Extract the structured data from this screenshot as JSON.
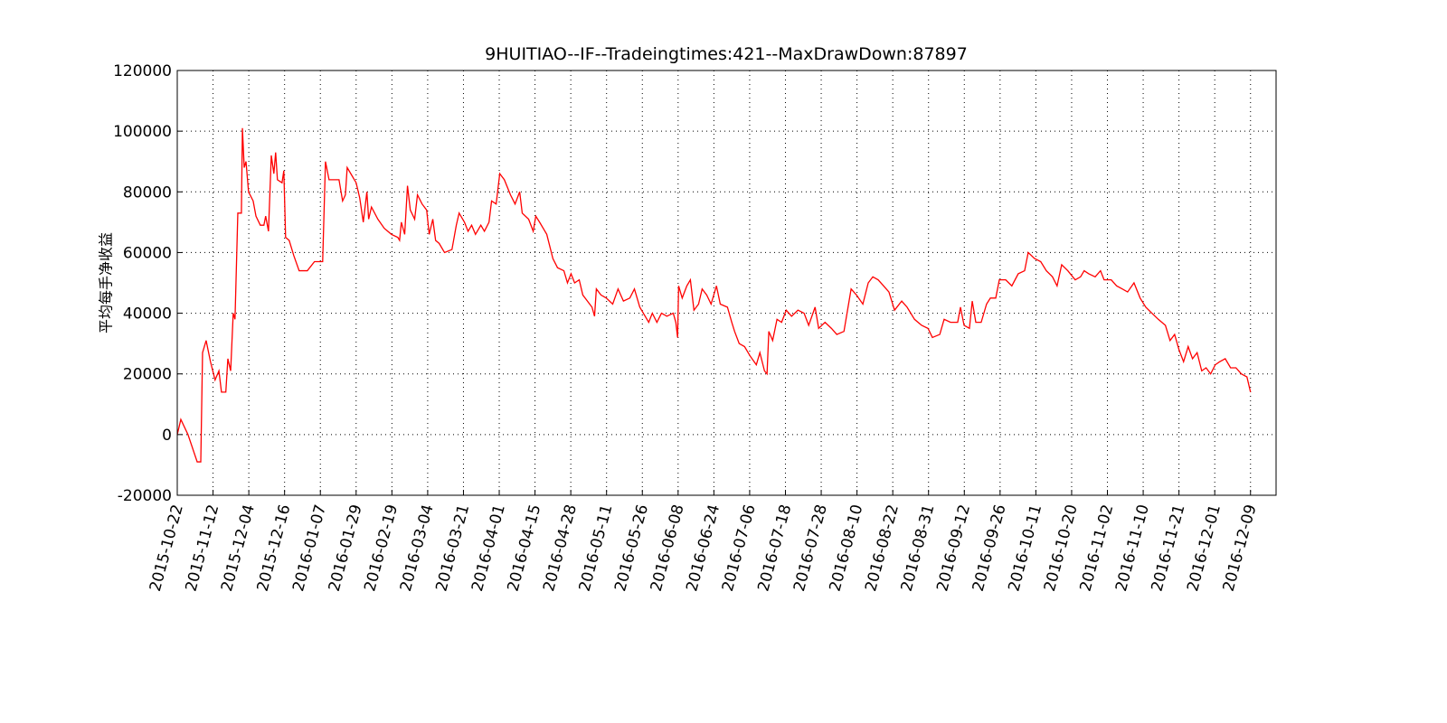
{
  "chart_data": {
    "type": "line",
    "title": "9HUITIAO--IF--Tradeingtimes:421--MaxDrawDown:87897",
    "y_label": "平均每手净收益",
    "color": "#ff0000",
    "grid": true,
    "xlim": [
      0,
      430
    ],
    "ylim": [
      -20000,
      120000
    ],
    "yticks": [
      -20000,
      0,
      20000,
      40000,
      60000,
      80000,
      100000,
      120000
    ],
    "xticks": [
      {
        "value": 0,
        "label": "2015-10-22"
      },
      {
        "value": 14,
        "label": "2015-11-12"
      },
      {
        "value": 28,
        "label": "2015-12-04"
      },
      {
        "value": 42,
        "label": "2015-12-16"
      },
      {
        "value": 56,
        "label": "2016-01-07"
      },
      {
        "value": 70,
        "label": "2016-01-29"
      },
      {
        "value": 84,
        "label": "2016-02-19"
      },
      {
        "value": 98,
        "label": "2016-03-04"
      },
      {
        "value": 112,
        "label": "2016-03-21"
      },
      {
        "value": 126,
        "label": "2016-04-01"
      },
      {
        "value": 140,
        "label": "2016-04-15"
      },
      {
        "value": 154,
        "label": "2016-04-28"
      },
      {
        "value": 168,
        "label": "2016-05-11"
      },
      {
        "value": 182,
        "label": "2016-05-26"
      },
      {
        "value": 196,
        "label": "2016-06-08"
      },
      {
        "value": 210,
        "label": "2016-06-24"
      },
      {
        "value": 224,
        "label": "2016-07-06"
      },
      {
        "value": 238,
        "label": "2016-07-18"
      },
      {
        "value": 252,
        "label": "2016-07-28"
      },
      {
        "value": 266,
        "label": "2016-08-10"
      },
      {
        "value": 280,
        "label": "2016-08-22"
      },
      {
        "value": 294,
        "label": "2016-08-31"
      },
      {
        "value": 308,
        "label": "2016-09-12"
      },
      {
        "value": 322,
        "label": "2016-09-26"
      },
      {
        "value": 336,
        "label": "2016-10-11"
      },
      {
        "value": 350,
        "label": "2016-10-20"
      },
      {
        "value": 364,
        "label": "2016-11-02"
      },
      {
        "value": 378,
        "label": "2016-11-10"
      },
      {
        "value": 392,
        "label": "2016-11-21"
      },
      {
        "value": 406,
        "label": "2016-12-01"
      },
      {
        "value": 420,
        "label": "2016-12-09"
      }
    ],
    "x": [
      0,
      1.4,
      4.2,
      7.8,
      9.2,
      9.9,
      11.3,
      13,
      14.8,
      16.3,
      17.3,
      19,
      19.8,
      20.9,
      21.9,
      22.6,
      23.7,
      25.1,
      25.5,
      26.2,
      26.9,
      27.9,
      29.7,
      30.8,
      32.5,
      33.9,
      34.6,
      35.7,
      36.8,
      37.8,
      38.5,
      39.2,
      41,
      41.7,
      42.4,
      43.8,
      45.6,
      47.7,
      50.9,
      53.7,
      56.9,
      58,
      59.4,
      63.3,
      64.7,
      65.8,
      66.5,
      67.9,
      70,
      71.4,
      72.8,
      74.2,
      74.9,
      76,
      78.5,
      81,
      83.8,
      86.3,
      87,
      87.7,
      89,
      90.1,
      91.2,
      92.9,
      94,
      95.8,
      97.6,
      98.6,
      100,
      101.1,
      102.5,
      104.6,
      107.5,
      109.2,
      110.3,
      112.4,
      113.8,
      115.2,
      116.7,
      118.8,
      120.2,
      122,
      123,
      124.8,
      126.2,
      128,
      130.4,
      132.2,
      134,
      135,
      137.5,
      139.3,
      140.3,
      141.8,
      144.6,
      147,
      148.8,
      151.3,
      152.7,
      154.1,
      155.5,
      157.3,
      158.7,
      160.5,
      162.3,
      163.3,
      164,
      165.8,
      167.9,
      170.4,
      172.5,
      174.6,
      177.1,
      178.9,
      181,
      183.1,
      184.5,
      185.9,
      187.7,
      189.5,
      191.6,
      194.1,
      195.1,
      195.8,
      196.2,
      197.6,
      199.4,
      200.8,
      202.2,
      204,
      205.4,
      207.2,
      208.9,
      211,
      212.5,
      215.3,
      217,
      218.1,
      219.9,
      222,
      224.1,
      226.6,
      228,
      229.8,
      230.8,
      231.5,
      233,
      234.7,
      236.5,
      238.3,
      240.4,
      242.9,
      245.3,
      247.1,
      249.6,
      251,
      253.5,
      256,
      258.1,
      260.9,
      262.3,
      263.7,
      265.8,
      268.3,
      270.4,
      272.2,
      274.3,
      276.4,
      278.5,
      280.7,
      283.5,
      285.6,
      288.5,
      291.3,
      293.8,
      295.5,
      298.4,
      300.1,
      302.6,
      305.4,
      306.5,
      307.9,
      310,
      311.1,
      312.5,
      314.6,
      316.7,
      318.2,
      320.3,
      321.7,
      324.2,
      326.6,
      329.1,
      331.6,
      333,
      335.5,
      337.9,
      340.1,
      342.5,
      344.3,
      346.1,
      348.5,
      351.4,
      353.5,
      354.9,
      356.7,
      359.2,
      361.3,
      362.7,
      365.5,
      367.6,
      369.8,
      371.9,
      374.4,
      376.8,
      379,
      381.4,
      383.9,
      386.7,
      388.5,
      390.3,
      392,
      393.8,
      395.6,
      397.3,
      399.1,
      400.9,
      402.6,
      404.4,
      406.2,
      407.9,
      410.1,
      412.2,
      414.3,
      416.4,
      418.6,
      420
    ],
    "values": [
      0,
      5000,
      0,
      -9000,
      -9000,
      27000,
      31000,
      24000,
      18000,
      21000,
      14000,
      14000,
      25000,
      21000,
      40000,
      38000,
      73000,
      73000,
      101000,
      88000,
      90000,
      80000,
      77000,
      72000,
      69000,
      69000,
      72000,
      67000,
      92000,
      86000,
      93000,
      84000,
      83000,
      87000,
      65000,
      64000,
      59000,
      54000,
      54000,
      57000,
      57000,
      90000,
      84000,
      84000,
      77000,
      79000,
      88000,
      86000,
      83000,
      78000,
      70000,
      80000,
      71000,
      75000,
      71000,
      68000,
      66000,
      65000,
      64000,
      70000,
      66000,
      82000,
      74000,
      71000,
      79000,
      76000,
      74000,
      66000,
      71000,
      64000,
      63000,
      60000,
      61000,
      69000,
      73000,
      70000,
      67000,
      69000,
      66000,
      69000,
      67000,
      70000,
      77000,
      76000,
      86000,
      84000,
      79000,
      76000,
      80000,
      73000,
      71000,
      67000,
      72000,
      70000,
      66000,
      58000,
      55000,
      54000,
      50000,
      53000,
      50000,
      51000,
      46000,
      44000,
      42000,
      39000,
      48000,
      46000,
      45000,
      43000,
      48000,
      44000,
      45000,
      48000,
      42000,
      39000,
      37000,
      40000,
      37000,
      40000,
      39000,
      40000,
      37000,
      32000,
      49000,
      45000,
      49000,
      51000,
      41000,
      43000,
      48000,
      46000,
      43000,
      49000,
      43000,
      42000,
      37000,
      34000,
      30000,
      29000,
      26000,
      23000,
      27000,
      21000,
      20000,
      34000,
      31000,
      38000,
      37000,
      41000,
      39000,
      41000,
      40000,
      36000,
      42000,
      35000,
      37000,
      35000,
      33000,
      34000,
      41000,
      48000,
      46000,
      43000,
      50000,
      52000,
      51000,
      49000,
      47000,
      41000,
      44000,
      42000,
      38000,
      36000,
      35000,
      32000,
      33000,
      38000,
      37000,
      37000,
      42000,
      36000,
      35000,
      44000,
      37000,
      37000,
      43000,
      45000,
      45000,
      51000,
      51000,
      49000,
      53000,
      54000,
      60000,
      58000,
      57000,
      54000,
      52000,
      49000,
      56000,
      54000,
      51000,
      52000,
      54000,
      53000,
      52000,
      54000,
      51000,
      51000,
      49000,
      48000,
      47000,
      50000,
      45000,
      42000,
      40000,
      38000,
      36000,
      31000,
      33000,
      28000,
      24000,
      29000,
      25000,
      27000,
      21000,
      22000,
      20000,
      23000,
      24000,
      25000,
      22000,
      22000,
      20000,
      19000,
      14000
    ]
  }
}
